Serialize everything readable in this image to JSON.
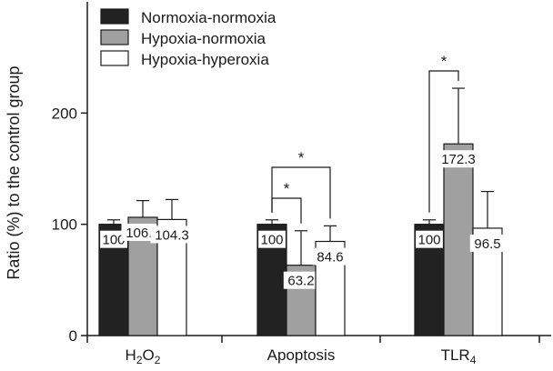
{
  "chart_data": {
    "type": "bar",
    "ylabel": "Ratio (%) to the control group",
    "ylim": [
      0,
      300
    ],
    "yticks": [
      0,
      100,
      200
    ],
    "grid": false,
    "legend_position": "top-left",
    "categories": [
      {
        "base": "H",
        "sub": "2",
        "base2": "O",
        "sub2": "2"
      },
      {
        "base": "Apoptosis",
        "sub": "",
        "base2": "",
        "sub2": ""
      },
      {
        "base": "TLR",
        "sub": "4",
        "base2": "",
        "sub2": ""
      }
    ],
    "series": [
      {
        "name": "Normoxia-normoxia",
        "color": "#222222",
        "values": [
          100,
          100,
          100
        ],
        "errors": [
          4,
          4,
          4
        ],
        "labels": [
          "100",
          "100",
          "100"
        ]
      },
      {
        "name": "Hypoxia-normoxia",
        "color": "#a0a0a0",
        "values": [
          106.3,
          63.2,
          172.3
        ],
        "errors": [
          15,
          31,
          50
        ],
        "labels": [
          "106.3",
          "63.2",
          "172.3"
        ]
      },
      {
        "name": "Hypoxia-hyperoxia",
        "color": "#ffffff",
        "values": [
          104.3,
          84.6,
          96.5
        ],
        "errors": [
          18,
          14,
          33
        ],
        "labels": [
          "104.3",
          "84.6",
          "96.5"
        ]
      }
    ],
    "significance": [
      {
        "category": 1,
        "from_series": 0,
        "to_series": 1,
        "label": "*"
      },
      {
        "category": 1,
        "from_series": 0,
        "to_series": 2,
        "label": "*"
      },
      {
        "category": 2,
        "from_series": 0,
        "to_series": 1,
        "label": "*"
      }
    ]
  }
}
